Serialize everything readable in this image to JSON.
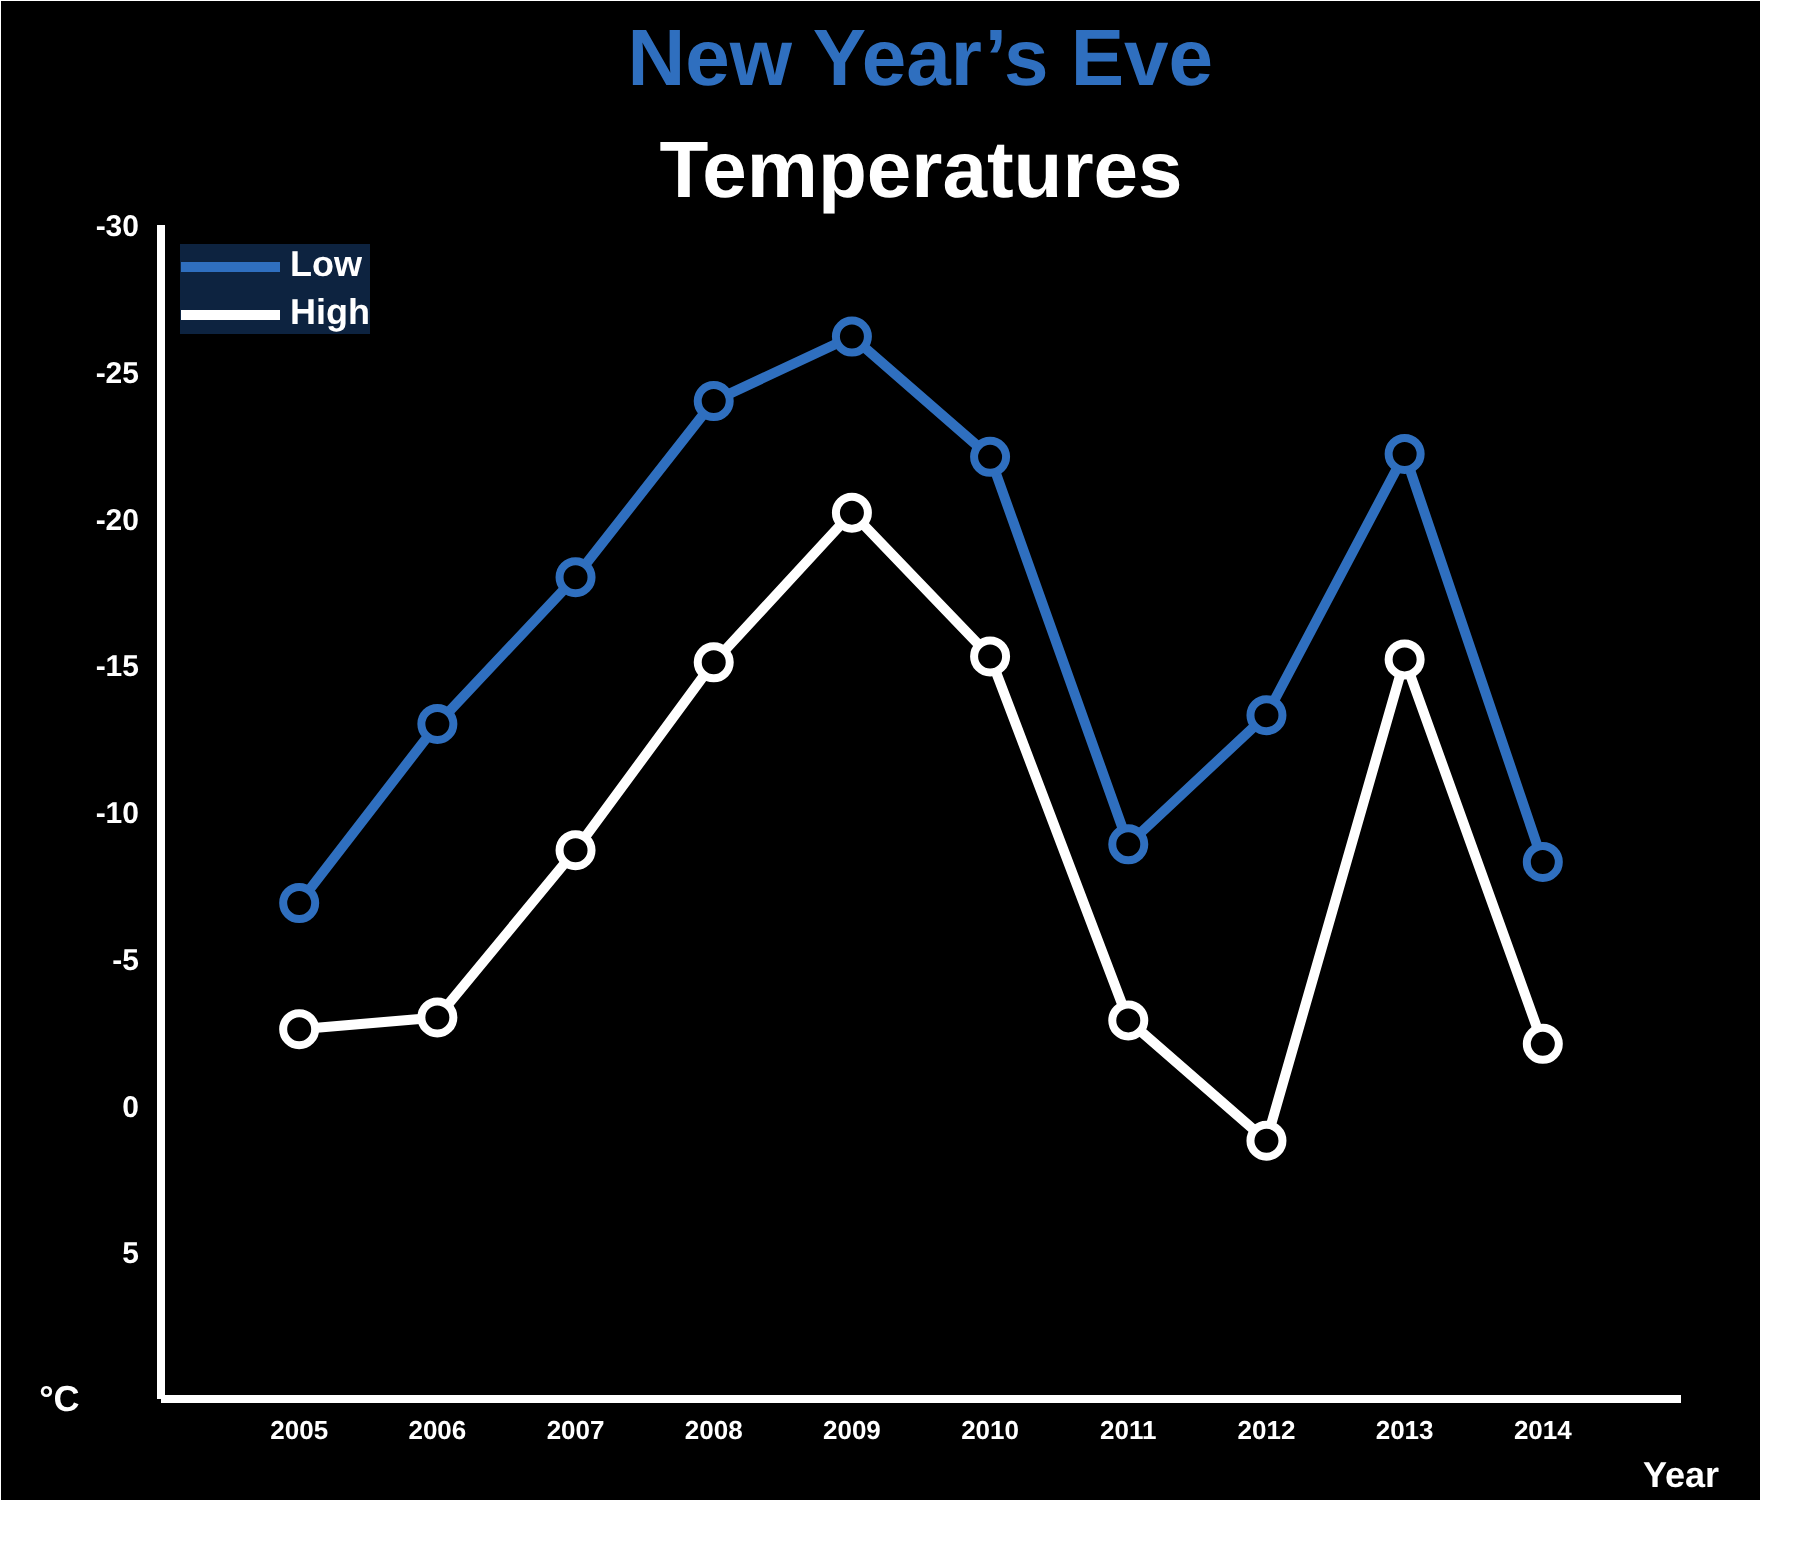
{
  "chart_data": {
    "type": "line",
    "title": "New Year’s Eve",
    "subtitle": "Temperatures",
    "ylabel": "°C",
    "xlabel": "Year",
    "categories": [
      "2005",
      "2006",
      "2007",
      "2008",
      "2009",
      "2010",
      "2011",
      "2012",
      "2013",
      "2014"
    ],
    "series": [
      {
        "name": "Low",
        "color": "#2f6fbf",
        "values": [
          -6.9,
          -13,
          -18,
          -24,
          -26.2,
          -22.1,
          -8.9,
          -13.3,
          -22.2,
          -8.3
        ]
      },
      {
        "name": "High",
        "color": "#ffffff",
        "values": [
          -2.6,
          -3.0,
          -8.7,
          -15.1,
          -20.2,
          -15.3,
          -2.9,
          1.2,
          -15.2,
          -2.1
        ]
      }
    ],
    "ylim": [
      10,
      -30
    ],
    "yticks": [
      -30,
      -25,
      -20,
      -15,
      -10,
      -5,
      0,
      5
    ],
    "grid": false,
    "legend": "top left",
    "marker": "circle",
    "line_style": "solid"
  }
}
